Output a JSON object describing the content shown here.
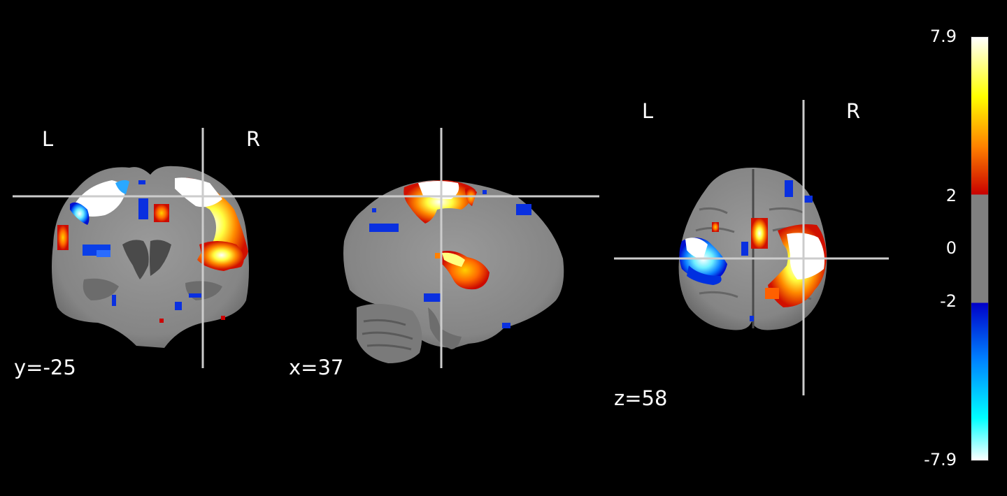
{
  "views": {
    "coronal": {
      "coord_label": "y=-25",
      "left_label": "L",
      "right_label": "R"
    },
    "sagittal": {
      "coord_label": "x=37"
    },
    "axial": {
      "coord_label": "z=58",
      "left_label": "L",
      "right_label": "R"
    }
  },
  "colorbar": {
    "max_label": "7.9",
    "thr_pos_label": "2",
    "zero_label": "0",
    "thr_neg_label": "-2",
    "min_label": "-7.9",
    "range": [
      -7.9,
      7.9
    ],
    "threshold": 2,
    "colors": {
      "pos_top": "#ffffff",
      "pos_yellow": "#ffff00",
      "pos_orange": "#ff8000",
      "pos_red": "#c80000",
      "thresholded": "#808080",
      "neg_blue": "#0000c8",
      "neg_mid": "#0080ff",
      "neg_cyan": "#00ffff",
      "neg_bottom": "#ffffff"
    }
  },
  "colors": {
    "background": "#000000",
    "crosshair": "#cccccc",
    "brain": "#8a8a8a"
  }
}
